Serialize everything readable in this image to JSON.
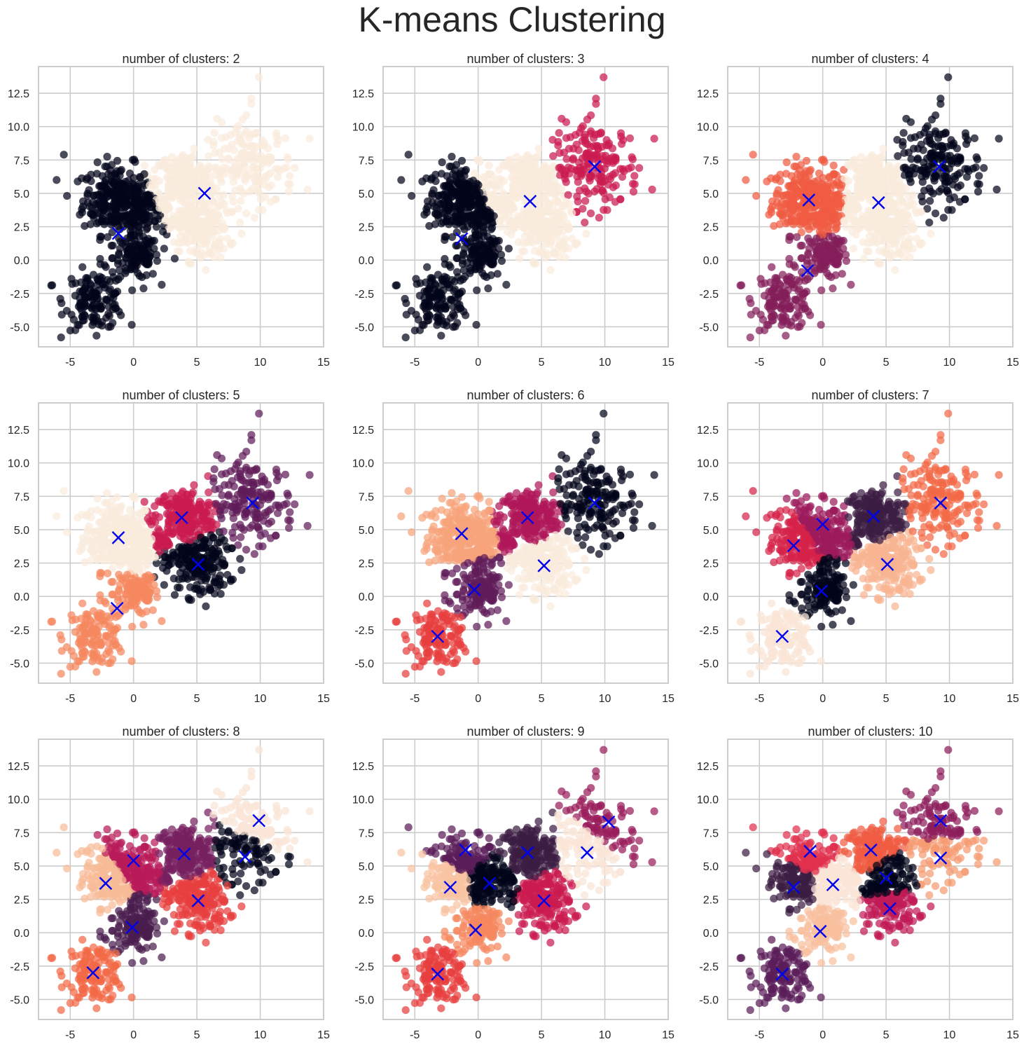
{
  "title": "K-means Clustering",
  "chart_data": [
    {
      "type": "scatter",
      "title": "number of clusters: 2",
      "xlim": [
        -7.5,
        15
      ],
      "ylim": [
        -6.5,
        14.5
      ],
      "xticks": [
        -5,
        0,
        5,
        10,
        15
      ],
      "yticks": [
        -5.0,
        -2.5,
        0.0,
        2.5,
        5.0,
        7.5,
        10.0,
        12.5
      ],
      "centroids": [
        [
          -1.2,
          2.0
        ],
        [
          5.6,
          5.0
        ]
      ],
      "palette": [
        "#03051a",
        "#faebdd"
      ]
    },
    {
      "type": "scatter",
      "title": "number of clusters: 3",
      "xlim": [
        -7.5,
        15
      ],
      "ylim": [
        -6.5,
        14.5
      ],
      "xticks": [
        -5,
        0,
        5,
        10,
        15
      ],
      "yticks": [
        -5.0,
        -2.5,
        0.0,
        2.5,
        5.0,
        7.5,
        10.0,
        12.5
      ],
      "centroids": [
        [
          -1.3,
          1.6
        ],
        [
          4.1,
          4.4
        ],
        [
          9.2,
          7.0
        ]
      ],
      "palette": [
        "#03051a",
        "#faebdd",
        "#cb1b4f"
      ]
    },
    {
      "type": "scatter",
      "title": "number of clusters: 4",
      "xlim": [
        -7.5,
        15
      ],
      "ylim": [
        -6.5,
        14.5
      ],
      "xticks": [
        -5,
        0,
        5,
        10,
        15
      ],
      "yticks": [
        -5.0,
        -2.5,
        0.0,
        2.5,
        5.0,
        7.5,
        10.0,
        12.5
      ],
      "centroids": [
        [
          -1.1,
          4.5
        ],
        [
          -1.2,
          -0.8
        ],
        [
          4.4,
          4.3
        ],
        [
          9.2,
          7.0
        ]
      ],
      "palette": [
        "#f05c42",
        "#841e5a",
        "#faebdd",
        "#03051a"
      ]
    },
    {
      "type": "scatter",
      "title": "number of clusters: 5",
      "xlim": [
        -7.5,
        15
      ],
      "ylim": [
        -6.5,
        14.5
      ],
      "xticks": [
        -5,
        0,
        5,
        10,
        15
      ],
      "yticks": [
        -5.0,
        -2.5,
        0.0,
        2.5,
        5.0,
        7.5,
        10.0,
        12.5
      ],
      "centroids": [
        [
          -1.2,
          4.4
        ],
        [
          -1.3,
          -0.9
        ],
        [
          3.8,
          5.9
        ],
        [
          5.1,
          2.4
        ],
        [
          9.4,
          7.0
        ]
      ],
      "palette": [
        "#faebdd",
        "#f58860",
        "#cb1b4f",
        "#03051a",
        "#5f1c59"
      ]
    },
    {
      "type": "scatter",
      "title": "number of clusters: 6",
      "xlim": [
        -7.5,
        15
      ],
      "ylim": [
        -6.5,
        14.5
      ],
      "xticks": [
        -5,
        0,
        5,
        10,
        15
      ],
      "yticks": [
        -5.0,
        -2.5,
        0.0,
        2.5,
        5.0,
        7.5,
        10.0,
        12.5
      ],
      "centroids": [
        [
          -1.3,
          4.7
        ],
        [
          -0.3,
          0.5
        ],
        [
          -3.2,
          -3.0
        ],
        [
          3.9,
          5.9
        ],
        [
          5.2,
          2.3
        ],
        [
          9.2,
          7.0
        ]
      ],
      "palette": [
        "#f6a47c",
        "#5f1c59",
        "#e83f3f",
        "#b01759",
        "#faebdd",
        "#03051a"
      ]
    },
    {
      "type": "scatter",
      "title": "number of clusters: 7",
      "xlim": [
        -7.5,
        15
      ],
      "ylim": [
        -6.5,
        14.5
      ],
      "xticks": [
        -5,
        0,
        5,
        10,
        15
      ],
      "yticks": [
        -5.0,
        -2.5,
        0.0,
        2.5,
        5.0,
        7.5,
        10.0,
        12.5
      ],
      "centroids": [
        [
          -2.3,
          3.8
        ],
        [
          0.0,
          5.4
        ],
        [
          4.0,
          6.0
        ],
        [
          5.1,
          2.4
        ],
        [
          -0.1,
          0.4
        ],
        [
          -3.2,
          -3.0
        ],
        [
          9.3,
          7.0
        ]
      ],
      "palette": [
        "#d6224a",
        "#9c1b5b",
        "#3b1d43",
        "#f8b491",
        "#03051a",
        "#fae4d5",
        "#f26a47"
      ]
    },
    {
      "type": "scatter",
      "title": "number of clusters: 8",
      "xlim": [
        -7.5,
        15
      ],
      "ylim": [
        -6.5,
        14.5
      ],
      "xticks": [
        -5,
        0,
        5,
        10,
        15
      ],
      "yticks": [
        -5.0,
        -2.5,
        0.0,
        2.5,
        5.0,
        7.5,
        10.0,
        12.5
      ],
      "centroids": [
        [
          -2.2,
          3.7
        ],
        [
          0.0,
          5.4
        ],
        [
          4.0,
          5.9
        ],
        [
          5.1,
          2.4
        ],
        [
          -0.1,
          0.4
        ],
        [
          -3.2,
          -3.0
        ],
        [
          8.8,
          5.7
        ],
        [
          9.9,
          8.4
        ]
      ],
      "palette": [
        "#f7bb97",
        "#b81a59",
        "#762060",
        "#e83f3f",
        "#4a1d4d",
        "#f26a47",
        "#03051a",
        "#fae5d7"
      ]
    },
    {
      "type": "scatter",
      "title": "number of clusters: 9",
      "xlim": [
        -7.5,
        15
      ],
      "ylim": [
        -6.5,
        14.5
      ],
      "xticks": [
        -5,
        0,
        5,
        10,
        15
      ],
      "yticks": [
        -5.0,
        -2.5,
        0.0,
        2.5,
        5.0,
        7.5,
        10.0,
        12.5
      ],
      "centroids": [
        [
          -2.2,
          3.4
        ],
        [
          -1.0,
          6.2
        ],
        [
          0.9,
          3.7
        ],
        [
          -0.2,
          0.2
        ],
        [
          -3.2,
          -3.1
        ],
        [
          3.9,
          6.0
        ],
        [
          5.2,
          2.4
        ],
        [
          8.6,
          6.0
        ],
        [
          10.3,
          8.3
        ]
      ],
      "palette": [
        "#f8c3a2",
        "#5a1d59",
        "#03051a",
        "#f58860",
        "#e83f3f",
        "#3b1d43",
        "#cb1b4f",
        "#fae5d7",
        "#9a1d5c"
      ]
    },
    {
      "type": "scatter",
      "title": "number of clusters: 10",
      "xlim": [
        -7.5,
        15
      ],
      "ylim": [
        -6.5,
        14.5
      ],
      "xticks": [
        -5,
        0,
        5,
        10,
        15
      ],
      "yticks": [
        -5.0,
        -2.5,
        0.0,
        2.5,
        5.0,
        7.5,
        10.0,
        12.5
      ],
      "centroids": [
        [
          -2.3,
          3.4
        ],
        [
          -1.0,
          6.1
        ],
        [
          0.8,
          3.6
        ],
        [
          -0.2,
          0.1
        ],
        [
          -3.2,
          -3.1
        ],
        [
          3.8,
          6.2
        ],
        [
          5.0,
          4.1
        ],
        [
          5.3,
          1.8
        ],
        [
          9.3,
          5.6
        ],
        [
          9.3,
          8.4
        ]
      ],
      "palette": [
        "#3b1d43",
        "#e0314d",
        "#fae5d7",
        "#f8bf9e",
        "#5a1d59",
        "#f05c42",
        "#03051a",
        "#c01a55",
        "#f59b72",
        "#8e1d5c"
      ]
    }
  ]
}
